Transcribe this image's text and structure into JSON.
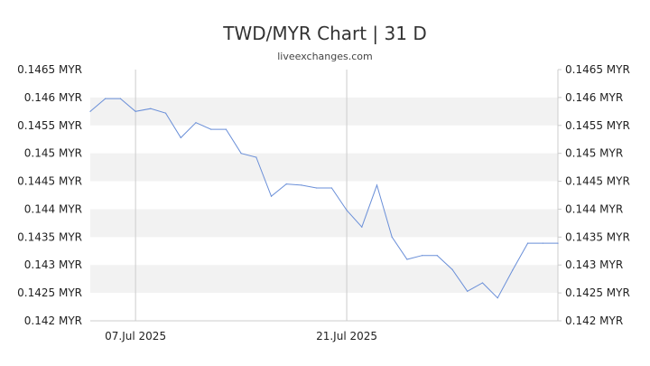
{
  "chart_data": {
    "type": "line",
    "title": "TWD/MYR Chart | 31 D",
    "subtitle": "liveexchanges.com",
    "xlabel": "",
    "ylabel": "",
    "ylim": [
      0.142,
      0.1465
    ],
    "y_ticks": [
      "0.142 MYR",
      "0.1425 MYR",
      "0.143 MYR",
      "0.1435 MYR",
      "0.144 MYR",
      "0.1445 MYR",
      "0.145 MYR",
      "0.1455 MYR",
      "0.146 MYR",
      "0.1465 MYR"
    ],
    "x_ticks": [
      "07.Jul 2025",
      "21.Jul 2025"
    ],
    "grid": true,
    "legend": "none",
    "series": [
      {
        "x": [
          "2025-07-03",
          "2025-07-04",
          "2025-07-05",
          "2025-07-06",
          "2025-07-07",
          "2025-07-08",
          "2025-07-09",
          "2025-07-10",
          "2025-07-11",
          "2025-07-12",
          "2025-07-13",
          "2025-07-14",
          "2025-07-15",
          "2025-07-16",
          "2025-07-17",
          "2025-07-18",
          "2025-07-19",
          "2025-07-20",
          "2025-07-21",
          "2025-07-22",
          "2025-07-23",
          "2025-07-24",
          "2025-07-25",
          "2025-07-26",
          "2025-07-27",
          "2025-07-28",
          "2025-07-29",
          "2025-07-30",
          "2025-07-31",
          "2025-08-01",
          "2025-08-02",
          "2025-08-03"
        ],
        "values": [
          0.14575,
          0.14598,
          0.14598,
          0.14575,
          0.1458,
          0.14572,
          0.14528,
          0.14555,
          0.14543,
          0.14543,
          0.145,
          0.14493,
          0.14423,
          0.14445,
          0.14443,
          0.14438,
          0.14438,
          0.14398,
          0.14368,
          0.14443,
          0.1435,
          0.1431,
          0.14317,
          0.14317,
          0.14292,
          0.14253,
          0.14268,
          0.14241,
          0.14291,
          0.14339,
          0.14339,
          0.14339
        ]
      }
    ],
    "colors": {
      "line": "#6a8fd8",
      "band": "#f2f2f2",
      "axis": "#cccccc",
      "vgrid": "#cccccc"
    }
  }
}
